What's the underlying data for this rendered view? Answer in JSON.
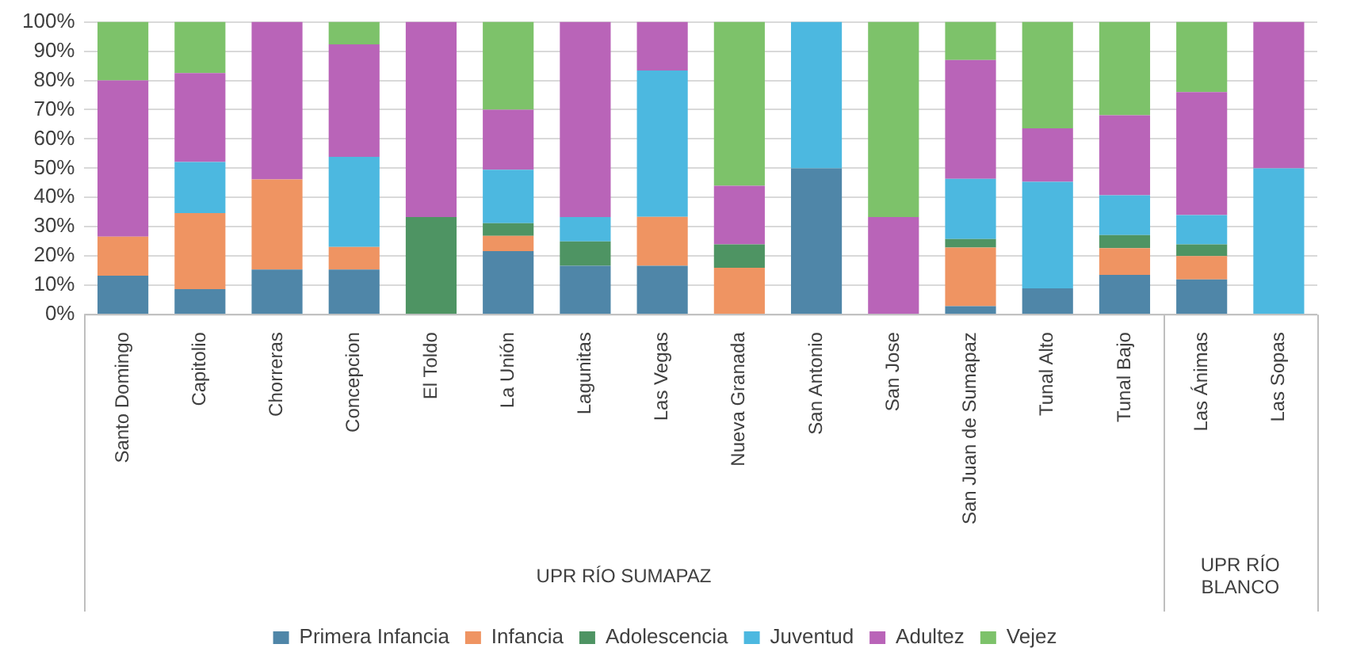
{
  "chart_data": {
    "type": "bar",
    "stacked": true,
    "categories": [
      "Santo Domingo",
      "Capitolio",
      "Chorreras",
      "Concepcion",
      "El Toldo",
      "La Unión",
      "Lagunitas",
      "Las Vegas",
      "Nueva Granada",
      "San Antonio",
      "San Jose",
      "San Juan de Sumapaz",
      "Tunal Alto",
      "Tunal Bajo",
      "Las Ánimas",
      "Las Sopas"
    ],
    "series": [
      {
        "name": "Primera Infancia",
        "color": "#4f86a8",
        "values": [
          13.3,
          8.7,
          15.4,
          15.4,
          0,
          21.7,
          16.7,
          16.7,
          0,
          50,
          0,
          2.9,
          9,
          13.6,
          12,
          0
        ]
      },
      {
        "name": "Infancia",
        "color": "#ef9462",
        "values": [
          13.3,
          26,
          30.8,
          7.7,
          0,
          5.2,
          0,
          16.7,
          16,
          0,
          0,
          20,
          0,
          9.1,
          8,
          0
        ]
      },
      {
        "name": "Adolescencia",
        "color": "#4e9463",
        "values": [
          0,
          0,
          0,
          0,
          33.3,
          4.3,
          8.3,
          0,
          8,
          0,
          0,
          2.9,
          0,
          4.5,
          4,
          0
        ]
      },
      {
        "name": "Juventud",
        "color": "#4cb8e0",
        "values": [
          0,
          17.4,
          0,
          30.8,
          0,
          18.3,
          8.3,
          50,
          0,
          50,
          0,
          20.6,
          36.4,
          13.6,
          10,
          50
        ]
      },
      {
        "name": "Adultez",
        "color": "#b964b8",
        "values": [
          53.4,
          30.4,
          53.8,
          38.4,
          66.7,
          20.5,
          66.7,
          16.6,
          20,
          0,
          33.3,
          40.6,
          18.2,
          27.3,
          42,
          50
        ]
      },
      {
        "name": "Vejez",
        "color": "#7dc26a",
        "values": [
          20,
          17.5,
          0,
          7.7,
          0,
          30,
          0,
          0,
          56,
          0,
          66.7,
          13,
          36.4,
          31.9,
          24,
          0
        ]
      }
    ],
    "ylim": [
      0,
      100
    ],
    "yticks": [
      {
        "value": 0,
        "label": "0%"
      },
      {
        "value": 10,
        "label": "10%"
      },
      {
        "value": 20,
        "label": "20%"
      },
      {
        "value": 30,
        "label": "30%"
      },
      {
        "value": 40,
        "label": "40%"
      },
      {
        "value": 50,
        "label": "50%"
      },
      {
        "value": 60,
        "label": "60%"
      },
      {
        "value": 70,
        "label": "70%"
      },
      {
        "value": 80,
        "label": "80%"
      },
      {
        "value": 90,
        "label": "90%"
      },
      {
        "value": 100,
        "label": "100%"
      }
    ],
    "grid": "y",
    "legend": "bottom",
    "annotations": [
      "UPR RÍO SUMAPAZ",
      "UPR RÍO BLANCO"
    ]
  }
}
